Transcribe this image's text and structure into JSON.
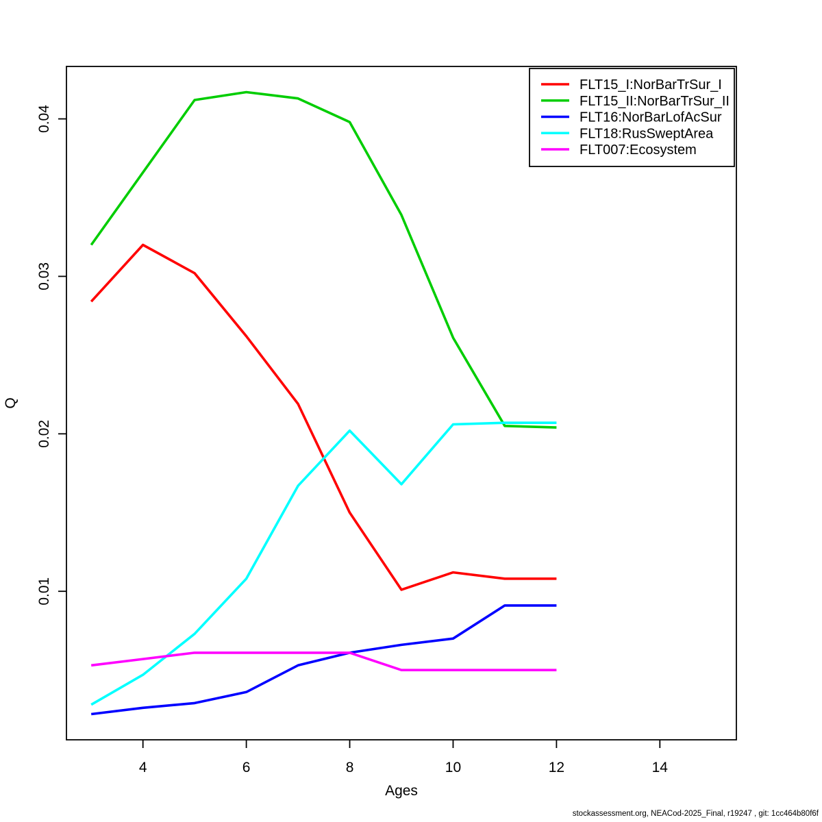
{
  "page": {
    "background": "#ffffff",
    "axis_color": "#000000",
    "text_color": "#000000"
  },
  "footer": {
    "text": "stockassessment.org, NEACod-2025_Final, r19247 , git: 1cc464b80f6f"
  },
  "chart_data": {
    "type": "line",
    "title": "",
    "xlabel": "Ages",
    "ylabel": "Q",
    "grid": false,
    "legend_position": "top-right",
    "x": [
      3,
      4,
      5,
      6,
      7,
      8,
      9,
      10,
      11,
      12
    ],
    "x_ticks": [
      4,
      6,
      8,
      10,
      12,
      14
    ],
    "y_ticks": [
      "0.01",
      "0.02",
      "0.03",
      "0.04"
    ],
    "y_tick_values": [
      0.01,
      0.02,
      0.03,
      0.04
    ],
    "xlim": [
      2.52,
      15.48
    ],
    "ylim": [
      0.00057,
      0.04333
    ],
    "series": [
      {
        "name": "FLT15_I:NorBarTrSur_I",
        "color": "#FF0000",
        "values": [
          0.0284,
          0.032,
          0.0302,
          0.0262,
          0.0219,
          0.015,
          0.0101,
          0.0112,
          0.0108,
          0.0108
        ]
      },
      {
        "name": "FLT15_II:NorBarTrSur_II",
        "color": "#00CD00",
        "values": [
          0.032,
          0.0366,
          0.0412,
          0.0417,
          0.0413,
          0.0398,
          0.0339,
          0.0261,
          0.0205,
          0.0204
        ]
      },
      {
        "name": "FLT16:NorBarLofAcSur",
        "color": "#0000FF",
        "values": [
          0.0022,
          0.0026,
          0.0029,
          0.0036,
          0.0053,
          0.0061,
          0.0066,
          0.007,
          0.0091,
          0.0091
        ]
      },
      {
        "name": "FLT18:RusSweptArea",
        "color": "#00FFFF",
        "values": [
          0.0028,
          0.0047,
          0.0073,
          0.0108,
          0.0167,
          0.0202,
          0.0168,
          0.0206,
          0.0207,
          0.0207
        ]
      },
      {
        "name": "FLT007:Ecosystem",
        "color": "#FF00FF",
        "values": [
          0.0053,
          0.0057,
          0.0061,
          0.0061,
          0.0061,
          0.0061,
          0.005,
          0.005,
          0.005,
          0.005
        ]
      }
    ]
  }
}
